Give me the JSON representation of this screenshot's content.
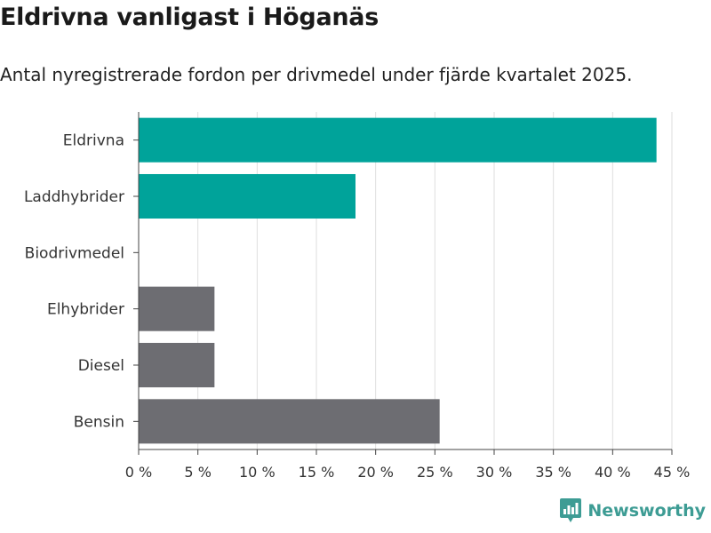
{
  "header": {
    "title": "Eldrivna vanligast i Höganäs",
    "subtitle": "Antal nyregistrerade fordon per drivmedel under fjärde kvartalet 2025."
  },
  "brand": {
    "name": "Newsworthy",
    "color": "#3d9c94"
  },
  "chart_data": {
    "type": "bar",
    "orientation": "horizontal",
    "title": "Eldrivna vanligast i Höganäs",
    "subtitle": "Antal nyregistrerade fordon per drivmedel under fjärde kvartalet 2025.",
    "xlabel": "",
    "ylabel": "",
    "xlim": [
      0,
      45
    ],
    "grid": true,
    "categories": [
      "Eldrivna",
      "Laddhybrider",
      "Biodrivmedel",
      "Elhybrider",
      "Diesel",
      "Bensin"
    ],
    "values": [
      43.7,
      18.3,
      0,
      6.4,
      6.4,
      25.4
    ],
    "colors": [
      "#00a39a",
      "#00a39a",
      "#00a39a",
      "#6d6d72",
      "#6d6d72",
      "#6d6d72"
    ],
    "x_ticks": [
      0,
      5,
      10,
      15,
      20,
      25,
      30,
      35,
      40,
      45
    ],
    "x_tick_labels": [
      "0 %",
      "5 %",
      "10 %",
      "15 %",
      "20 %",
      "25 %",
      "30 %",
      "35 %",
      "40 %",
      "45 %"
    ]
  }
}
